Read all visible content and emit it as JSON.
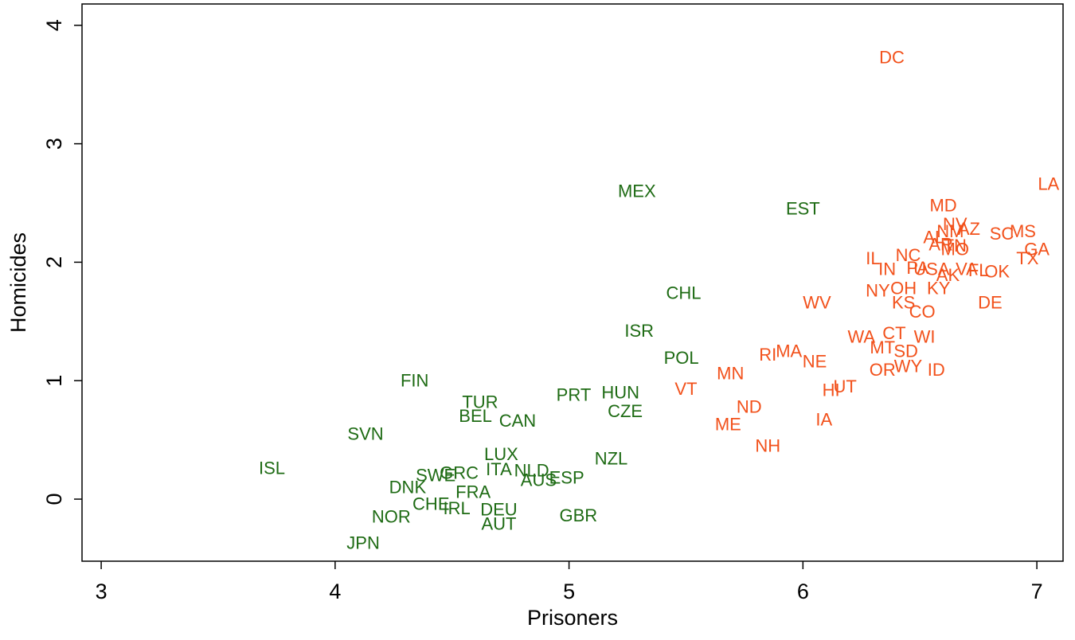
{
  "chart_data": {
    "type": "scatter",
    "x_label": "Prisoners",
    "y_label": "Homicides",
    "xlim": [
      2.918,
      7.112
    ],
    "ylim": [
      -0.524,
      4.18
    ],
    "xticks": [
      3,
      4,
      5,
      6,
      7
    ],
    "yticks": [
      0,
      1,
      2,
      3,
      4
    ],
    "series": [
      {
        "color": "#1e6b14",
        "labels": [
          "MEX",
          "EST",
          "CHL",
          "ISR",
          "POL",
          "FIN",
          "PRT",
          "HUN",
          "TUR",
          "BEL",
          "CAN",
          "CZE",
          "SVN",
          "NZL",
          "LUX",
          "ISL",
          "ITA",
          "NLD",
          "SWE",
          "GRC",
          "AUS",
          "ESP",
          "DNK",
          "FRA",
          "CHE",
          "IRL",
          "DEU",
          "NOR",
          "GBR",
          "AUT",
          "JPN"
        ],
        "x": [
          5.29,
          6.0,
          5.49,
          5.3,
          5.48,
          4.34,
          5.02,
          5.22,
          4.62,
          4.6,
          4.78,
          5.24,
          4.13,
          5.18,
          4.71,
          3.73,
          4.7,
          4.84,
          4.43,
          4.53,
          4.87,
          4.99,
          4.31,
          4.59,
          4.41,
          4.52,
          4.7,
          4.24,
          5.04,
          4.7,
          4.12
        ],
        "y": [
          2.59,
          2.44,
          1.73,
          1.41,
          1.18,
          0.99,
          0.87,
          0.89,
          0.81,
          0.69,
          0.65,
          0.73,
          0.54,
          0.33,
          0.37,
          0.25,
          0.24,
          0.23,
          0.19,
          0.21,
          0.15,
          0.17,
          0.09,
          0.05,
          -0.05,
          -0.09,
          -0.1,
          -0.16,
          -0.15,
          -0.22,
          -0.38
        ]
      },
      {
        "color": "#f2511b",
        "labels": [
          "DC",
          "LA",
          "MD",
          "NV",
          "AZ",
          "NM",
          "SC",
          "MS",
          "AL",
          "AR",
          "TN",
          "MO",
          "GA",
          "TX",
          "IL",
          "NC",
          "PA",
          "IN",
          "USA",
          "VA",
          "FL",
          "AK",
          "OK",
          "NY",
          "OH",
          "KY",
          "KS",
          "WV",
          "CO",
          "DE",
          "WA",
          "CT",
          "WI",
          "MT",
          "SD",
          "RI",
          "MA",
          "NE",
          "WY",
          "OR",
          "ID",
          "MN",
          "VT",
          "HI",
          "UT",
          "ND",
          "ME",
          "IA",
          "NH"
        ],
        "x": [
          6.38,
          7.05,
          6.6,
          6.65,
          6.71,
          6.63,
          6.85,
          6.94,
          6.56,
          6.59,
          6.65,
          6.65,
          7.0,
          6.96,
          6.3,
          6.45,
          6.49,
          6.36,
          6.55,
          6.7,
          6.75,
          6.62,
          6.83,
          6.32,
          6.43,
          6.58,
          6.43,
          6.06,
          6.51,
          6.8,
          6.25,
          6.39,
          6.52,
          6.34,
          6.44,
          5.85,
          5.94,
          6.05,
          6.45,
          6.34,
          6.57,
          5.69,
          5.5,
          6.12,
          6.18,
          5.77,
          5.68,
          6.09,
          5.85
        ],
        "y": [
          3.72,
          2.65,
          2.47,
          2.31,
          2.27,
          2.25,
          2.23,
          2.25,
          2.2,
          2.14,
          2.13,
          2.1,
          2.1,
          2.02,
          2.02,
          2.05,
          1.94,
          1.93,
          1.93,
          1.93,
          1.92,
          1.88,
          1.91,
          1.75,
          1.77,
          1.77,
          1.65,
          1.65,
          1.57,
          1.65,
          1.36,
          1.39,
          1.36,
          1.27,
          1.24,
          1.21,
          1.24,
          1.15,
          1.11,
          1.08,
          1.08,
          1.05,
          0.92,
          0.91,
          0.94,
          0.77,
          0.62,
          0.66,
          0.44
        ]
      }
    ]
  }
}
